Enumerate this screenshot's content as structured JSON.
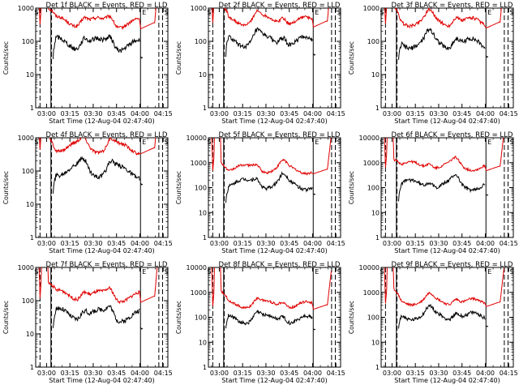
{
  "start_time_label": "Start Time (12-Aug-04 02:47:40)",
  "y_axis_label": "Counts/sec",
  "x_tick_labels": [
    "03:00",
    "03:15",
    "03:30",
    "03:45",
    "04:00",
    "04:15"
  ],
  "markers": {
    "saa_start": "S",
    "eclipse": "E",
    "saa_end": "S"
  },
  "colors": {
    "events": "#000000",
    "lld": "#e00000"
  },
  "chart_data": [
    {
      "type": "line",
      "title": "Det 1f BLACK = Events, RED = LLD",
      "yscale": "log",
      "ylim": [
        1,
        1000
      ],
      "y_ticks": [
        1,
        10,
        100,
        1000
      ],
      "lld_level": 400,
      "events_level": 90,
      "series": [
        {
          "name": "Events",
          "color": "black"
        },
        {
          "name": "LLD",
          "color": "red"
        }
      ]
    },
    {
      "type": "line",
      "title": "Det 2f BLACK = Events, RED = LLD",
      "yscale": "log",
      "ylim": [
        1,
        1000
      ],
      "y_ticks": [
        1,
        10,
        100,
        1000
      ],
      "lld_level": 450,
      "events_level": 110,
      "series": [
        {
          "name": "Events",
          "color": "black"
        },
        {
          "name": "LLD",
          "color": "red"
        }
      ]
    },
    {
      "type": "line",
      "title": "Det 3f BLACK = Events, RED = LLD",
      "yscale": "log",
      "ylim": [
        1,
        1000
      ],
      "y_ticks": [
        1,
        10,
        100,
        1000
      ],
      "lld_level": 420,
      "events_level": 95,
      "series": [
        {
          "name": "Events",
          "color": "black"
        },
        {
          "name": "LLD",
          "color": "red"
        }
      ]
    },
    {
      "type": "line",
      "title": "Det 4f BLACK = Events, RED = LLD",
      "yscale": "log",
      "ylim": [
        1,
        1000
      ],
      "y_ticks": [
        1,
        10,
        100,
        1000
      ],
      "lld_level": 550,
      "events_level": 110,
      "series": [
        {
          "name": "Events",
          "color": "black"
        },
        {
          "name": "LLD",
          "color": "red"
        }
      ]
    },
    {
      "type": "line",
      "title": "Det 5f BLACK = Events, RED = LLD",
      "yscale": "log",
      "ylim": [
        1,
        10000
      ],
      "y_ticks": [
        1,
        10,
        100,
        1000,
        10000
      ],
      "lld_level": 600,
      "events_level": 150,
      "series": [
        {
          "name": "Events",
          "color": "black"
        },
        {
          "name": "LLD",
          "color": "red"
        }
      ]
    },
    {
      "type": "line",
      "title": "Det 6f BLACK = Events, RED = LLD",
      "yscale": "log",
      "ylim": [
        1,
        10000
      ],
      "y_ticks": [
        1,
        10,
        100,
        1000,
        10000
      ],
      "lld_level": 800,
      "events_level": 140,
      "series": [
        {
          "name": "Events",
          "color": "black"
        },
        {
          "name": "LLD",
          "color": "red"
        }
      ]
    },
    {
      "type": "line",
      "title": "Det 7f BLACK = Events, RED = LLD",
      "yscale": "log",
      "ylim": [
        1,
        1000
      ],
      "y_ticks": [
        1,
        10,
        100,
        1000
      ],
      "lld_level": 150,
      "events_level": 40,
      "series": [
        {
          "name": "Events",
          "color": "black"
        },
        {
          "name": "LLD",
          "color": "red"
        }
      ]
    },
    {
      "type": "line",
      "title": "Det 8f BLACK = Events, RED = LLD",
      "yscale": "log",
      "ylim": [
        1,
        10000
      ],
      "y_ticks": [
        1,
        10,
        100,
        1000,
        10000
      ],
      "lld_level": 350,
      "events_level": 90,
      "series": [
        {
          "name": "Events",
          "color": "black"
        },
        {
          "name": "LLD",
          "color": "red"
        }
      ]
    },
    {
      "type": "line",
      "title": "Det 9f BLACK = Events, RED = LLD",
      "yscale": "log",
      "ylim": [
        1,
        10000
      ],
      "y_ticks": [
        1,
        10,
        100,
        1000,
        10000
      ],
      "lld_level": 450,
      "events_level": 120,
      "series": [
        {
          "name": "Events",
          "color": "black"
        },
        {
          "name": "LLD",
          "color": "red"
        }
      ]
    }
  ]
}
